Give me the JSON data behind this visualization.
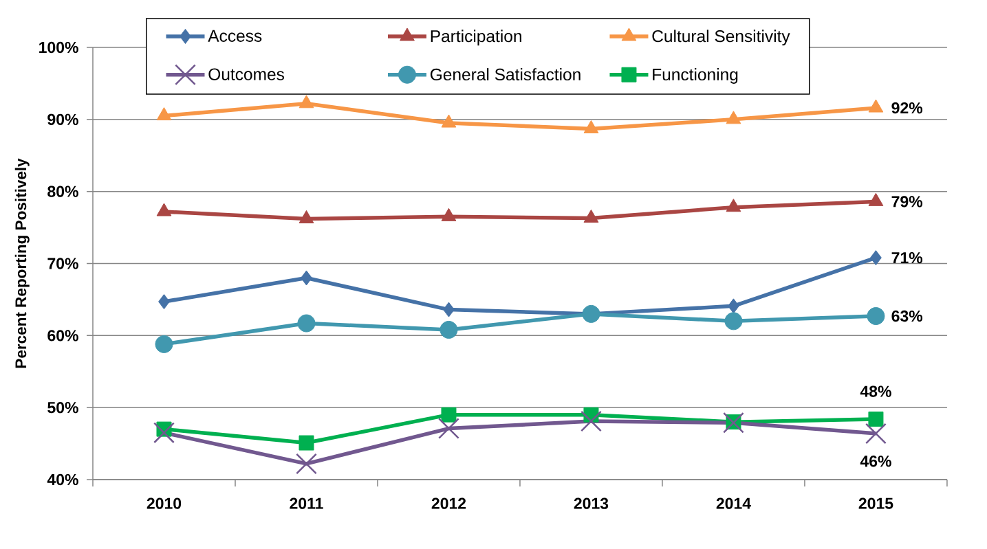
{
  "chart_data": {
    "type": "line",
    "ylabel": "Percent Reporting Positively",
    "categories": [
      "2010",
      "2011",
      "2012",
      "2013",
      "2014",
      "2015"
    ],
    "series": [
      {
        "name": "Access",
        "color": "#4572a7",
        "marker": "diamond",
        "values": [
          64.7,
          68.0,
          63.6,
          63.0,
          64.1,
          70.8
        ],
        "value_labels": [
          null,
          null,
          null,
          null,
          null,
          "71%"
        ]
      },
      {
        "name": "Participation",
        "color": "#aa4643",
        "marker": "triangle",
        "values": [
          77.2,
          76.2,
          76.5,
          76.3,
          77.8,
          78.6
        ],
        "value_labels": [
          null,
          null,
          null,
          null,
          null,
          "79%"
        ]
      },
      {
        "name": "Cultural Sensitivity",
        "color": "#f79646",
        "marker": "triangle",
        "values": [
          90.5,
          92.2,
          89.5,
          88.7,
          90.0,
          91.6
        ],
        "value_labels": [
          null,
          null,
          null,
          null,
          null,
          "92%"
        ]
      },
      {
        "name": "Outcomes",
        "color": "#71588f",
        "marker": "cross",
        "values": [
          46.5,
          42.2,
          47.1,
          48.1,
          47.9,
          46.4
        ],
        "value_labels": [
          null,
          null,
          null,
          null,
          null,
          "46%"
        ]
      },
      {
        "name": "General Satisfaction",
        "color": "#4198af",
        "marker": "circle",
        "values": [
          58.8,
          61.7,
          60.8,
          63.0,
          62.0,
          62.7
        ],
        "value_labels": [
          null,
          null,
          null,
          null,
          null,
          "63%"
        ]
      },
      {
        "name": "Functioning",
        "color": "#00b050",
        "marker": "square",
        "values": [
          47.0,
          45.1,
          49.0,
          49.0,
          48.0,
          48.4
        ],
        "value_labels": [
          null,
          null,
          null,
          null,
          null,
          "48%"
        ]
      }
    ],
    "ylim": [
      40,
      100
    ],
    "yticks": [
      {
        "value": 40,
        "label": "40%"
      },
      {
        "value": 50,
        "label": "50%"
      },
      {
        "value": 60,
        "label": "60%"
      },
      {
        "value": 70,
        "label": "70%"
      },
      {
        "value": 80,
        "label": "80%"
      },
      {
        "value": 90,
        "label": "90%"
      },
      {
        "value": 100,
        "label": "100%"
      }
    ],
    "grid": "y",
    "legend": "top",
    "line_style": "solid"
  }
}
